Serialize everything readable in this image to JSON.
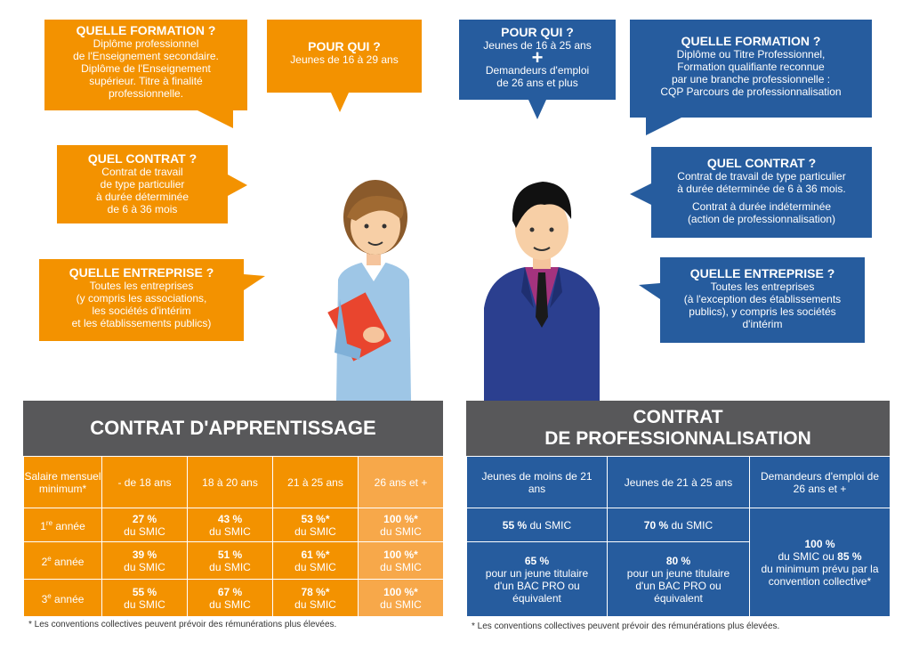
{
  "left": {
    "formation": {
      "title": "QUELLE FORMATION ?",
      "body": "Diplôme professionnel\nde l'Enseignement secondaire.\nDiplôme de l'Enseignement\nsupérieur. Titre à finalité\nprofessionnelle."
    },
    "pourqui": {
      "title": "POUR QUI ?",
      "body": "Jeunes de 16 à 29 ans"
    },
    "contrat": {
      "title": "QUEL CONTRAT ?",
      "body": "Contrat de travail\nde type particulier\nà durée déterminée\nde 6 à 36 mois"
    },
    "entreprise": {
      "title": "QUELLE ENTREPRISE ?",
      "body": "Toutes les entreprises\n(y compris les associations,\nles sociétés d'intérim\net les établissements publics)"
    },
    "table_title": "CONTRAT D'APPRENTISSAGE",
    "header": [
      "Salaire mensuel minimum*",
      "- de 18 ans",
      "18 à 20 ans",
      "21 à 25 ans",
      "26 ans et +"
    ],
    "rows": [
      {
        "label_num": "1",
        "label_sup": "re",
        "label_rest": " année",
        "cells": [
          [
            "27 %",
            "du SMIC"
          ],
          [
            "43 %",
            "du SMIC"
          ],
          [
            "53 %*",
            "du SMIC"
          ],
          [
            "100 %*",
            "du SMIC"
          ]
        ]
      },
      {
        "label_num": "2",
        "label_sup": "e",
        "label_rest": " année",
        "cells": [
          [
            "39 %",
            "du SMIC"
          ],
          [
            "51 %",
            "du SMIC"
          ],
          [
            "61 %*",
            "du SMIC"
          ],
          [
            "100 %*",
            "du SMIC"
          ]
        ]
      },
      {
        "label_num": "3",
        "label_sup": "e",
        "label_rest": " année",
        "cells": [
          [
            "55 %",
            "du SMIC"
          ],
          [
            "67 %",
            "du SMIC"
          ],
          [
            "78 %*",
            "du SMIC"
          ],
          [
            "100 %*",
            "du SMIC"
          ]
        ]
      }
    ],
    "note": "* Les conventions collectives peuvent prévoir des rémunérations plus élevées."
  },
  "right": {
    "pourqui": {
      "title": "POUR QUI ?",
      "body1": "Jeunes de 16 à 25 ans",
      "plus": "+",
      "body2": "Demandeurs d'emploi\nde 26 ans et plus"
    },
    "formation": {
      "title": "QUELLE FORMATION ?",
      "body": "Diplôme ou Titre Professionnel,\nFormation qualifiante reconnue\npar une branche professionnelle :\nCQP Parcours de professionnalisation"
    },
    "contrat": {
      "title": "QUEL CONTRAT ?",
      "body1": "Contrat de travail de type particulier\nà durée déterminée de 6 à 36 mois.",
      "body2": "Contrat à durée indéterminée\n(action de professionnalisation)"
    },
    "entreprise": {
      "title": "QUELLE ENTREPRISE ?",
      "body": "Toutes les entreprises\n(à l'exception des établissements\npublics), y compris les sociétés\nd'intérim"
    },
    "table_title_1": "CONTRAT",
    "table_title_2": "DE PROFESSIONNALISATION",
    "header": [
      "Jeunes de moins de 21 ans",
      "Jeunes de 21 à 25 ans",
      "Demandeurs d'emploi de 26 ans et +"
    ],
    "row1": [
      [
        "55 %",
        "du SMIC"
      ],
      [
        "70 %",
        "du SMIC"
      ]
    ],
    "row2": [
      [
        "65 %",
        "pour un jeune titulaire d'un BAC PRO ou équivalent"
      ],
      [
        "80 %",
        "pour un jeune titulaire d'un BAC PRO ou équivalent"
      ]
    ],
    "merged": {
      "v1": "100 %",
      "t1": "du SMIC ou",
      "v2": "85 %",
      "t2": "du minimum prévu par la convention collective*"
    },
    "note": "* Les conventions collectives peuvent prévoir des rémunérations plus élevées."
  },
  "colors": {
    "orange": "#f39200",
    "blue": "#265c9e",
    "gray": "#58585a"
  }
}
